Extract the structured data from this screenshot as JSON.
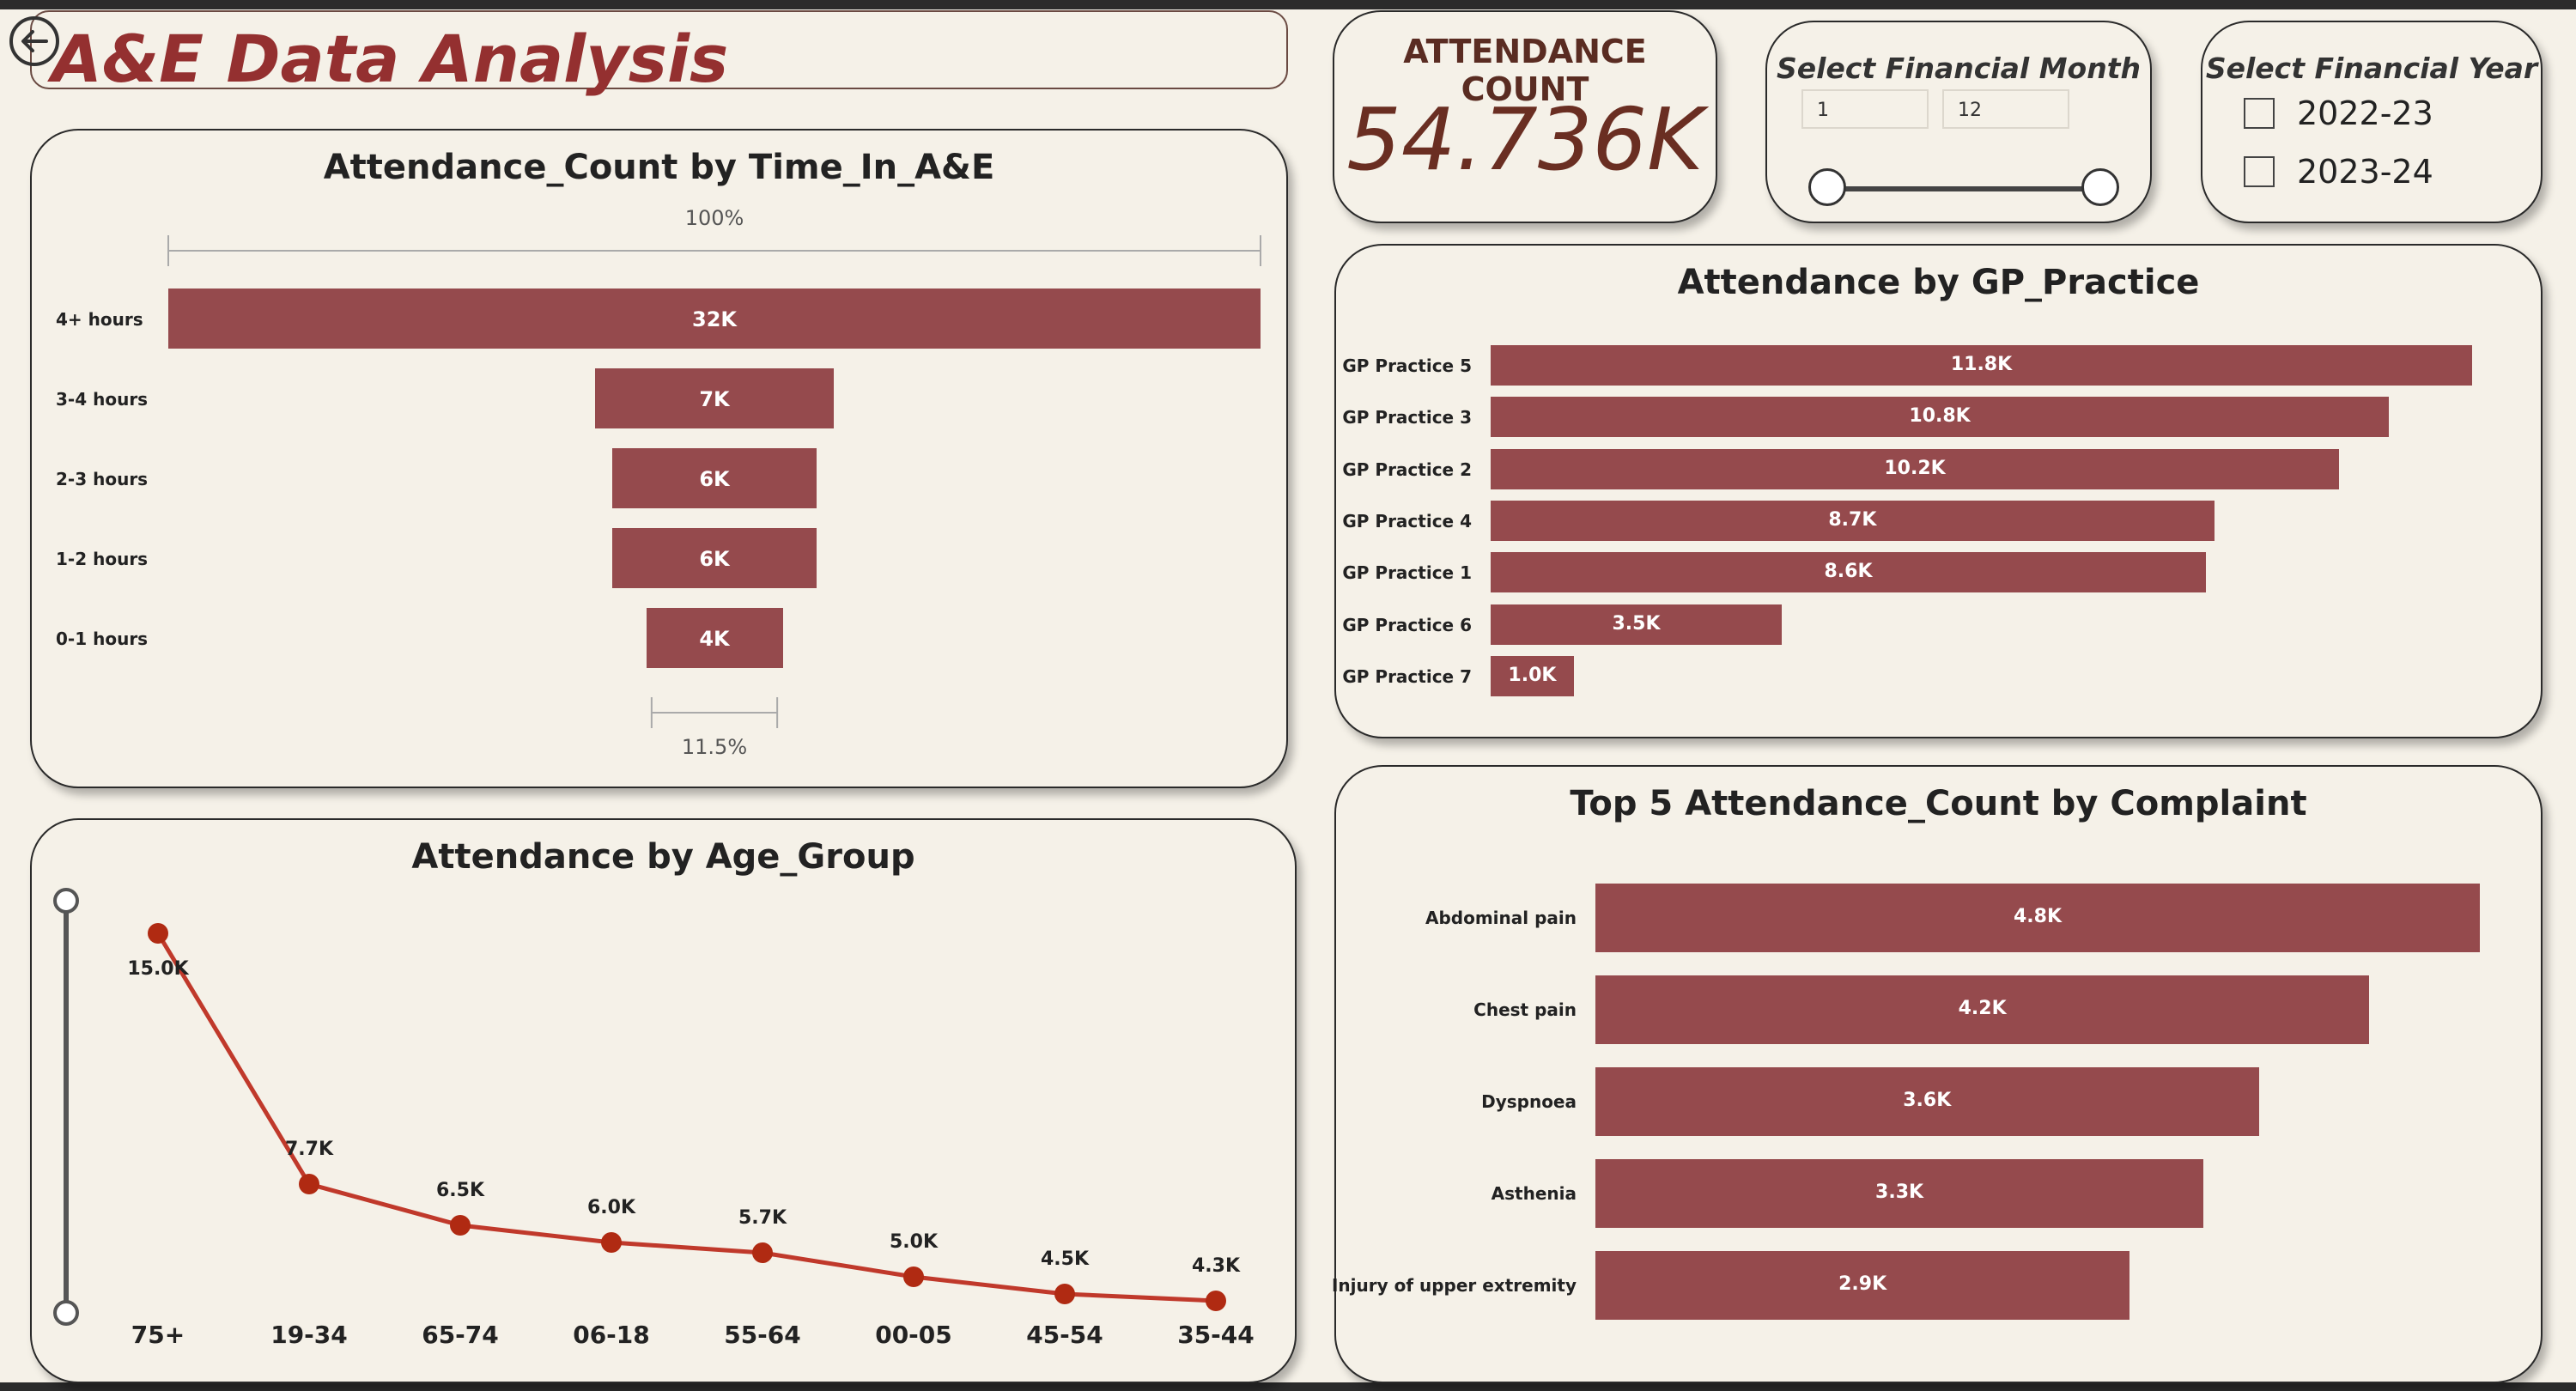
{
  "header": {
    "title": "A&E Data Analysis",
    "back_icon": "back-arrow-circle-icon"
  },
  "kpi": {
    "title": "ATTENDANCE COUNT",
    "value": "54.736K"
  },
  "month_slicer": {
    "title": "Select Financial Month",
    "min": "1",
    "max": "12",
    "low_value": 1,
    "high_value": 12
  },
  "year_slicer": {
    "title": "Select Financial Year",
    "options": [
      {
        "label": "2022-23",
        "checked": false
      },
      {
        "label": "2023-24",
        "checked": false
      }
    ]
  },
  "colors": {
    "bar": "#954a4d",
    "line": "#c0392b",
    "title": "#943030",
    "background": "#f5f1e8"
  },
  "chart_data": [
    {
      "type": "funnel",
      "title": "Attendance_Count by Time_In_A&E",
      "categories": [
        "4+ hours",
        "3-4 hours",
        "2-3 hours",
        "1-2 hours",
        "0-1 hours"
      ],
      "values": [
        32000,
        7000,
        6000,
        6000,
        4000
      ],
      "value_labels": [
        "32K",
        "7K",
        "6K",
        "6K",
        "4K"
      ],
      "top_percent_label": "100%",
      "bottom_percent_label": "11.5%",
      "bottom_fraction": 0.115
    },
    {
      "type": "bar",
      "orientation": "horizontal",
      "title": "Attendance by GP_Practice",
      "categories": [
        "GP Practice 5",
        "GP Practice 3",
        "GP Practice 2",
        "GP Practice 4",
        "GP Practice 1",
        "GP Practice 6",
        "GP Practice 7"
      ],
      "values": [
        11800,
        10800,
        10200,
        8700,
        8600,
        3500,
        1000
      ],
      "value_labels": [
        "11.8K",
        "10.8K",
        "10.2K",
        "8.7K",
        "8.6K",
        "3.5K",
        "1.0K"
      ],
      "xlim": [
        0,
        11800
      ]
    },
    {
      "type": "line",
      "title": "Attendance by Age_Group",
      "categories": [
        "75+",
        "19-34",
        "65-74",
        "06-18",
        "55-64",
        "00-05",
        "45-54",
        "35-44"
      ],
      "values": [
        15000,
        7700,
        6500,
        6000,
        5700,
        5000,
        4500,
        4300
      ],
      "value_labels": [
        "15.0K",
        "7.7K",
        "6.5K",
        "6.0K",
        "5.7K",
        "5.0K",
        "4.5K",
        "4.3K"
      ],
      "ylim": [
        4300,
        15000
      ]
    },
    {
      "type": "bar",
      "orientation": "horizontal",
      "title": "Top 5 Attendance_Count by Complaint",
      "categories": [
        "Abdominal pain",
        "Chest pain",
        "Dyspnoea",
        "Asthenia",
        "Injury of upper extremity"
      ],
      "values": [
        4800,
        4200,
        3600,
        3300,
        2900
      ],
      "value_labels": [
        "4.8K",
        "4.2K",
        "3.6K",
        "3.3K",
        "2.9K"
      ],
      "xlim": [
        0,
        4800
      ]
    }
  ]
}
